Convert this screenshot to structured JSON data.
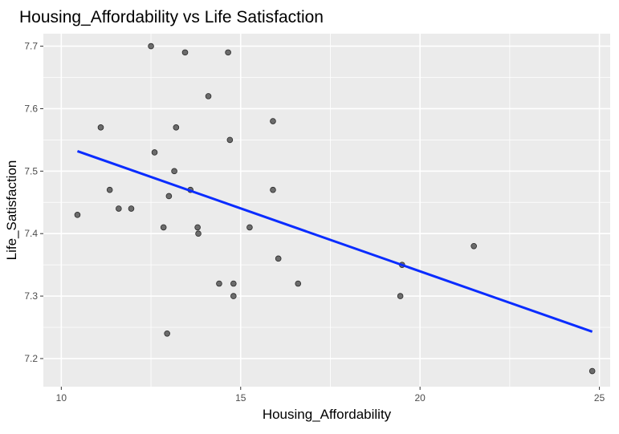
{
  "chart_data": {
    "type": "scatter",
    "title": "Housing_Affordability vs Life Satisfaction",
    "xlabel": "Housing_Affordability",
    "ylabel": "Life_Satisfaction",
    "xlim": [
      9.5,
      25.3
    ],
    "ylim": [
      7.155,
      7.72
    ],
    "x_major_ticks": [
      10,
      15,
      20,
      25
    ],
    "x_minor_ticks": [
      12.5,
      17.5,
      22.5
    ],
    "y_major_ticks": [
      7.2,
      7.3,
      7.4,
      7.5,
      7.6,
      7.7
    ],
    "y_minor_ticks": [
      7.25,
      7.35,
      7.45,
      7.55,
      7.65
    ],
    "x_tick_labels": [
      "10",
      "15",
      "20",
      "25"
    ],
    "y_tick_labels": [
      "7.2",
      "7.3",
      "7.4",
      "7.5",
      "7.6",
      "7.7"
    ],
    "grid": true,
    "legend": "none",
    "points": [
      {
        "x": 10.45,
        "y": 7.43
      },
      {
        "x": 11.1,
        "y": 7.57
      },
      {
        "x": 11.35,
        "y": 7.47
      },
      {
        "x": 11.6,
        "y": 7.44
      },
      {
        "x": 11.95,
        "y": 7.44
      },
      {
        "x": 12.5,
        "y": 7.7
      },
      {
        "x": 12.6,
        "y": 7.53
      },
      {
        "x": 12.85,
        "y": 7.41
      },
      {
        "x": 12.95,
        "y": 7.24
      },
      {
        "x": 13.0,
        "y": 7.46
      },
      {
        "x": 13.15,
        "y": 7.5
      },
      {
        "x": 13.2,
        "y": 7.57
      },
      {
        "x": 13.45,
        "y": 7.69
      },
      {
        "x": 13.6,
        "y": 7.47
      },
      {
        "x": 13.8,
        "y": 7.41
      },
      {
        "x": 13.82,
        "y": 7.4
      },
      {
        "x": 14.1,
        "y": 7.62
      },
      {
        "x": 14.4,
        "y": 7.32
      },
      {
        "x": 14.65,
        "y": 7.69
      },
      {
        "x": 14.7,
        "y": 7.55
      },
      {
        "x": 14.8,
        "y": 7.32
      },
      {
        "x": 14.8,
        "y": 7.3
      },
      {
        "x": 15.25,
        "y": 7.41
      },
      {
        "x": 15.9,
        "y": 7.58
      },
      {
        "x": 15.9,
        "y": 7.47
      },
      {
        "x": 16.05,
        "y": 7.36
      },
      {
        "x": 16.6,
        "y": 7.32
      },
      {
        "x": 19.45,
        "y": 7.3
      },
      {
        "x": 19.5,
        "y": 7.35
      },
      {
        "x": 21.5,
        "y": 7.38
      },
      {
        "x": 24.8,
        "y": 7.18
      }
    ],
    "trend_line": {
      "method": "linear",
      "start": {
        "x": 10.45,
        "y": 7.532
      },
      "end": {
        "x": 24.8,
        "y": 7.243
      },
      "color": "#0a2cff"
    },
    "point_color": "#555555",
    "panel_background": "#ebebeb",
    "grid_color": "#ffffff"
  }
}
